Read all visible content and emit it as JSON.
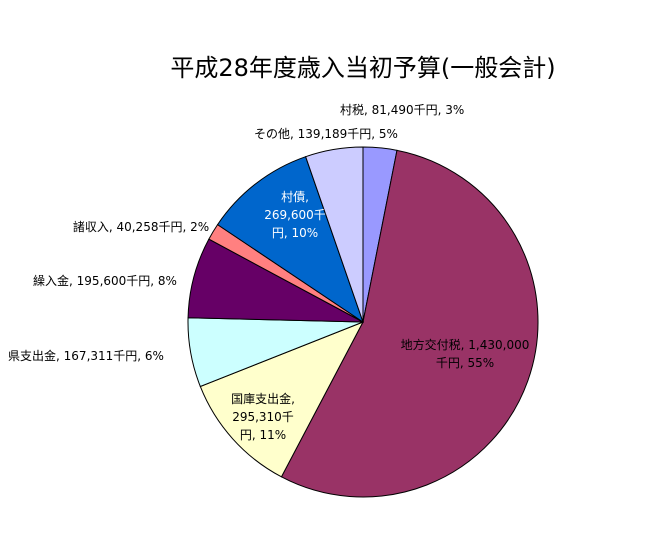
{
  "chart_data": {
    "type": "pie",
    "title": "平成28年度歳入当初予算(一般会計)",
    "slices": [
      {
        "name": "村税",
        "value": 81490,
        "percent": "3%",
        "color": "#9999ff",
        "label_lines": [
          "村税, 81,490千円, 3%"
        ]
      },
      {
        "name": "地方交付税",
        "value": 1430000,
        "percent": "55%",
        "color": "#993366",
        "label_lines": [
          "地方交付税, 1,430,000",
          "千円, 55%"
        ]
      },
      {
        "name": "国庫支出金",
        "value": 295310,
        "percent": "11%",
        "color": "#ffffcc",
        "label_lines": [
          "国庫支出金,",
          "295,310千",
          "円, 11%"
        ]
      },
      {
        "name": "県支出金",
        "value": 167311,
        "percent": "6%",
        "color": "#ccffff",
        "label_lines": [
          "県支出金, 167,311千円, 6%"
        ]
      },
      {
        "name": "繰入金",
        "value": 195600,
        "percent": "8%",
        "color": "#660066",
        "label_lines": [
          "繰入金, 195,600千円, 8%"
        ]
      },
      {
        "name": "諸収入",
        "value": 40258,
        "percent": "2%",
        "color": "#ff8080",
        "label_lines": [
          "諸収入, 40,258千円, 2%"
        ]
      },
      {
        "name": "村債",
        "value": 269600,
        "percent": "10%",
        "color": "#0066cc",
        "label_lines": [
          "村債,",
          "269,600千",
          "円, 10%"
        ]
      },
      {
        "name": "その他",
        "value": 139189,
        "percent": "5%",
        "color": "#ccccff",
        "label_lines": [
          "その他, 139,189千円, 5%"
        ]
      }
    ]
  }
}
